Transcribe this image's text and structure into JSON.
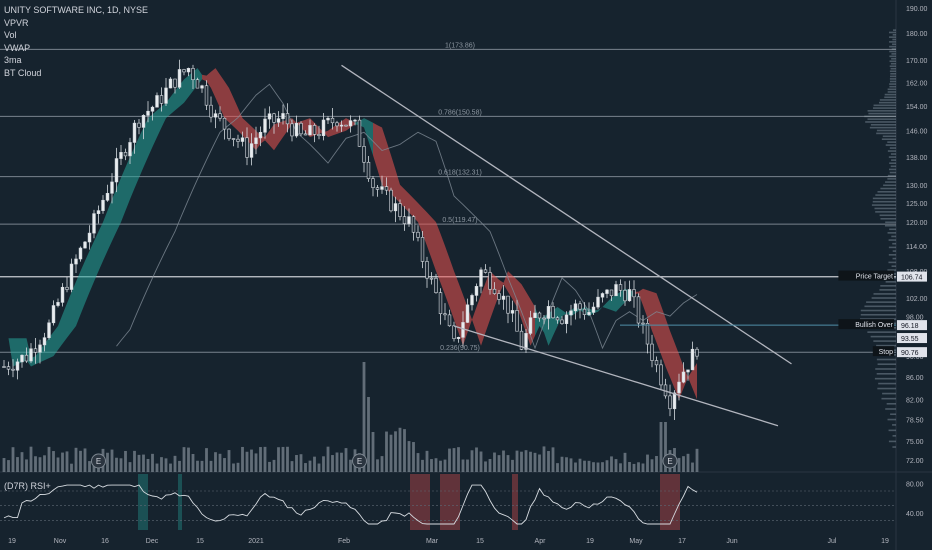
{
  "header": {
    "symbol_line": "UNITY SOFTWARE INC, 1D, NYSE",
    "indicators": [
      "VPVR",
      "Vol",
      "VWAP",
      "3ma",
      "BT Cloud"
    ]
  },
  "rsi_panel": {
    "title": "(D7R) RSI+",
    "ticks": [
      "80.00",
      "40.00"
    ]
  },
  "colors": {
    "background": "#16232e",
    "bull": "#26a69a",
    "bear": "#ef5350",
    "grid_line": "#9aa3ad",
    "trend_line": "#b2b5be"
  },
  "chart_data": {
    "type": "candlestick",
    "title": "UNITY SOFTWARE INC, 1D, NYSE",
    "x_tick_labels": [
      "19",
      "Nov",
      "16",
      "Dec",
      "15",
      "2021",
      "Feb",
      "Mar",
      "15",
      "Apr",
      "19",
      "May",
      "17",
      "Jun",
      "Jul",
      "19"
    ],
    "y_tick_labels": [
      "190.00",
      "180.00",
      "170.00",
      "162.00",
      "154.00",
      "146.00",
      "138.00",
      "130.00",
      "125.00",
      "120.00",
      "114.00",
      "108.00",
      "102.00",
      "98.00",
      "94.00",
      "90.00",
      "86.00",
      "82.00",
      "78.50",
      "75.00",
      "72.00"
    ],
    "ylim": [
      70,
      192
    ],
    "y_scale": "log",
    "fib_levels": [
      {
        "label": "1(173.86)",
        "value": 173.86
      },
      {
        "label": "0.786(150.58)",
        "value": 150.58
      },
      {
        "label": "0.618(132.31)",
        "value": 132.31
      },
      {
        "label": "0.5(119.47)",
        "value": 119.47
      },
      {
        "label": "0.236(90.75)",
        "value": 90.75
      }
    ],
    "key_level_106": 106.7,
    "price_labels": [
      {
        "text": "Price Target",
        "tag": "106.74",
        "value": 106.74
      },
      {
        "text": "Bullish Over",
        "tag": "96.18",
        "value": 96.18
      },
      {
        "text": "",
        "tag": "93.55",
        "value": 93.55
      },
      {
        "text": "Stop",
        "tag": "90.76",
        "value": 90.76
      }
    ],
    "earnings_markers": [
      "E",
      "E",
      "E"
    ],
    "close_path": [
      [
        0,
        88
      ],
      [
        5,
        90
      ],
      [
        10,
        96
      ],
      [
        15,
        108
      ],
      [
        20,
        120
      ],
      [
        25,
        135
      ],
      [
        30,
        150
      ],
      [
        34,
        155
      ],
      [
        38,
        163
      ],
      [
        41,
        167
      ],
      [
        44,
        160
      ],
      [
        47,
        150
      ],
      [
        50,
        146
      ],
      [
        54,
        140
      ],
      [
        58,
        148
      ],
      [
        62,
        150
      ],
      [
        66,
        144
      ],
      [
        70,
        146
      ],
      [
        74,
        150
      ],
      [
        78,
        147
      ],
      [
        82,
        130
      ],
      [
        86,
        125
      ],
      [
        90,
        120
      ],
      [
        94,
        108
      ],
      [
        97,
        100
      ],
      [
        100,
        92
      ],
      [
        103,
        100
      ],
      [
        106,
        108
      ],
      [
        109,
        105
      ],
      [
        112,
        100
      ],
      [
        115,
        92
      ],
      [
        118,
        98
      ],
      [
        121,
        100
      ],
      [
        124,
        98
      ],
      [
        127,
        100
      ],
      [
        130,
        99
      ],
      [
        133,
        102
      ],
      [
        136,
        104
      ],
      [
        139,
        103
      ],
      [
        142,
        95
      ],
      [
        145,
        88
      ],
      [
        148,
        82
      ],
      [
        150,
        86
      ],
      [
        153,
        90
      ],
      [
        155,
        93.5
      ]
    ],
    "trend_lines": [
      {
        "from": [
          75,
          168
        ],
        "to": [
          175,
          88.5
        ]
      },
      {
        "from": [
          100,
          96
        ],
        "to": [
          172,
          77.5
        ]
      }
    ]
  }
}
